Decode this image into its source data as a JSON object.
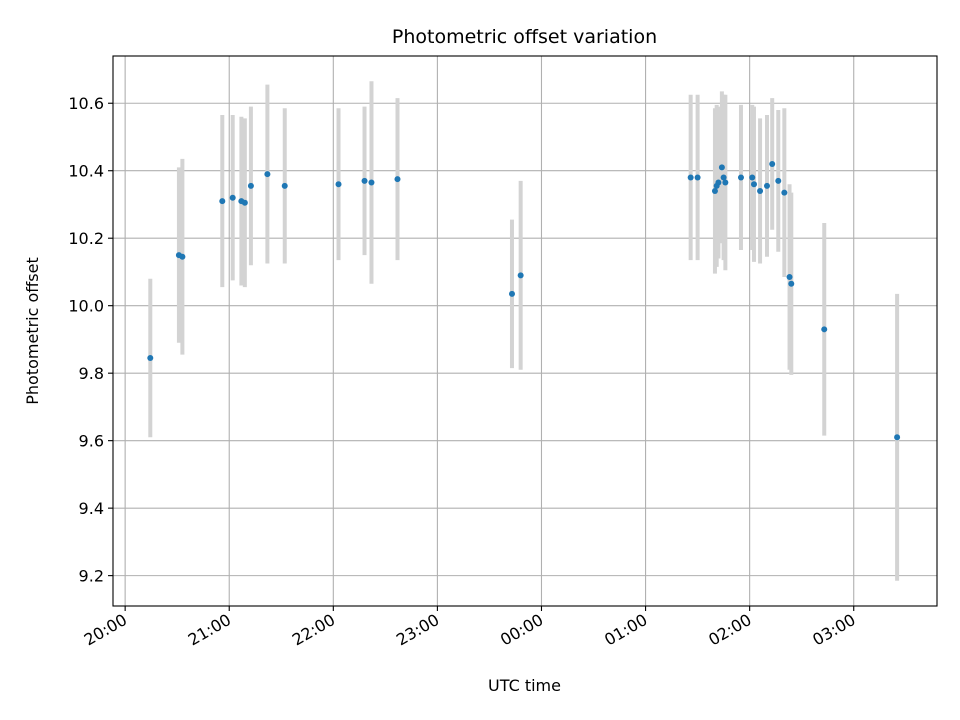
{
  "chart_data": {
    "type": "scatter",
    "title": "Photometric offset variation",
    "xlabel": "UTC time",
    "ylabel": "Photometric offset",
    "x_start": "2000-01-01T19:53",
    "x_end": "2000-01-02T03:48",
    "xticks": [
      {
        "t": "2000-01-01T20:00",
        "label": "20:00"
      },
      {
        "t": "2000-01-01T21:00",
        "label": "21:00"
      },
      {
        "t": "2000-01-01T22:00",
        "label": "22:00"
      },
      {
        "t": "2000-01-01T23:00",
        "label": "23:00"
      },
      {
        "t": "2000-01-02T00:00",
        "label": "00:00"
      },
      {
        "t": "2000-01-02T01:00",
        "label": "01:00"
      },
      {
        "t": "2000-01-02T02:00",
        "label": "02:00"
      },
      {
        "t": "2000-01-02T03:00",
        "label": "03:00"
      }
    ],
    "ylim": [
      9.11,
      10.74
    ],
    "yticks": [
      9.2,
      9.4,
      9.6,
      9.8,
      10.0,
      10.2,
      10.4,
      10.6
    ],
    "ytick_labels": [
      "9.2",
      "9.4",
      "9.6",
      "9.8",
      "10.0",
      "10.2",
      "10.4",
      "10.6"
    ],
    "grid": true,
    "colors": {
      "point": "#1f77b4",
      "error_bar": "#d3d3d3",
      "grid": "#b0b0b0"
    },
    "points": [
      {
        "t": "2000-01-01T20:14:30",
        "y": 9.845,
        "err": 0.235
      },
      {
        "t": "2000-01-01T20:31:00",
        "y": 10.15,
        "err": 0.26
      },
      {
        "t": "2000-01-01T20:33:00",
        "y": 10.145,
        "err": 0.29
      },
      {
        "t": "2000-01-01T20:56:00",
        "y": 10.31,
        "err": 0.255
      },
      {
        "t": "2000-01-01T21:02:00",
        "y": 10.32,
        "err": 0.245
      },
      {
        "t": "2000-01-01T21:07:00",
        "y": 10.31,
        "err": 0.25
      },
      {
        "t": "2000-01-01T21:09:00",
        "y": 10.305,
        "err": 0.25
      },
      {
        "t": "2000-01-01T21:12:30",
        "y": 10.355,
        "err": 0.235
      },
      {
        "t": "2000-01-01T21:22:00",
        "y": 10.39,
        "err": 0.265
      },
      {
        "t": "2000-01-01T21:32:00",
        "y": 10.355,
        "err": 0.23
      },
      {
        "t": "2000-01-01T22:03:00",
        "y": 10.36,
        "err": 0.225
      },
      {
        "t": "2000-01-01T22:18:00",
        "y": 10.37,
        "err": 0.22
      },
      {
        "t": "2000-01-01T22:22:00",
        "y": 10.365,
        "err": 0.3
      },
      {
        "t": "2000-01-01T22:37:00",
        "y": 10.375,
        "err": 0.24
      },
      {
        "t": "2000-01-01T23:43:00",
        "y": 10.035,
        "err": 0.22
      },
      {
        "t": "2000-01-01T23:48:00",
        "y": 10.09,
        "err": 0.28
      },
      {
        "t": "2000-01-02T01:26:00",
        "y": 10.38,
        "err": 0.245
      },
      {
        "t": "2000-01-02T01:30:00",
        "y": 10.38,
        "err": 0.245
      },
      {
        "t": "2000-01-02T01:40:00",
        "y": 10.34,
        "err": 0.245
      },
      {
        "t": "2000-01-02T01:41:00",
        "y": 10.355,
        "err": 0.24
      },
      {
        "t": "2000-01-02T01:42:00",
        "y": 10.365,
        "err": 0.225
      },
      {
        "t": "2000-01-02T01:44:00",
        "y": 10.41,
        "err": 0.225
      },
      {
        "t": "2000-01-02T01:45:00",
        "y": 10.38,
        "err": 0.245
      },
      {
        "t": "2000-01-02T01:46:00",
        "y": 10.365,
        "err": 0.26
      },
      {
        "t": "2000-01-02T01:55:00",
        "y": 10.38,
        "err": 0.215
      },
      {
        "t": "2000-01-02T02:01:30",
        "y": 10.38,
        "err": 0.215
      },
      {
        "t": "2000-01-02T02:02:30",
        "y": 10.36,
        "err": 0.23
      },
      {
        "t": "2000-01-02T02:06:00",
        "y": 10.34,
        "err": 0.215
      },
      {
        "t": "2000-01-02T02:10:00",
        "y": 10.355,
        "err": 0.21
      },
      {
        "t": "2000-01-02T02:13:00",
        "y": 10.42,
        "err": 0.195
      },
      {
        "t": "2000-01-02T02:16:30",
        "y": 10.37,
        "err": 0.21
      },
      {
        "t": "2000-01-02T02:20:00",
        "y": 10.335,
        "err": 0.25
      },
      {
        "t": "2000-01-02T02:23:00",
        "y": 10.085,
        "err": 0.275
      },
      {
        "t": "2000-01-02T02:24:00",
        "y": 10.065,
        "err": 0.27
      },
      {
        "t": "2000-01-02T02:43:00",
        "y": 9.93,
        "err": 0.315
      },
      {
        "t": "2000-01-02T03:25:00",
        "y": 9.61,
        "err": 0.425
      }
    ]
  }
}
